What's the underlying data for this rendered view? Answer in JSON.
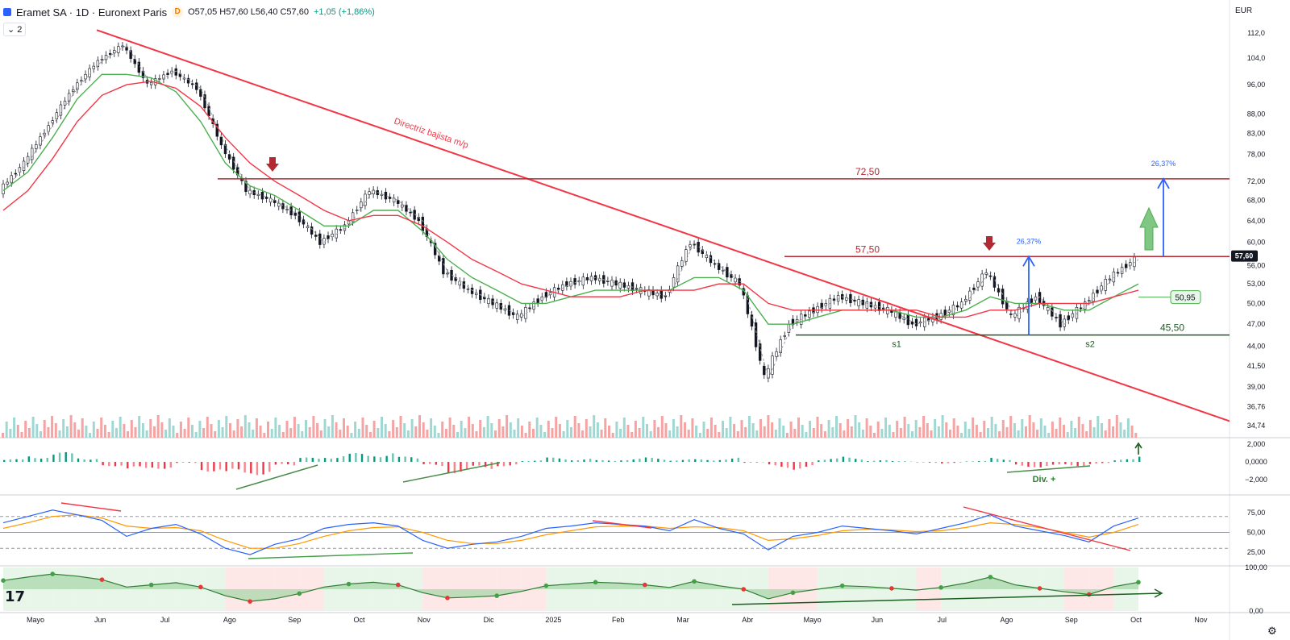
{
  "header": {
    "symbol": "Eramet SA · 1D · Euronext Paris",
    "interval_badge": "D",
    "ohlc": "O57,05 H57,60 L56,40 C57,60",
    "change": "+1,05 (+1,86%)",
    "layers_count": "2"
  },
  "currency": "EUR",
  "colors": {
    "up": "#26a69a",
    "down": "#ef5350",
    "sma_green": "#4caf50",
    "sma_red": "#f23645",
    "trendline": "#f23645",
    "resistance": "#b22833",
    "support": "#1b5e20",
    "arrow_blue": "#2962ff"
  },
  "chart_data": [
    {
      "type": "line",
      "panel": "price",
      "scale": "log",
      "x_ticks": [
        "Mayo",
        "Jun",
        "Jul",
        "Ago",
        "Sep",
        "Oct",
        "Nov",
        "Dic",
        "2025",
        "Feb",
        "Mar",
        "Abr",
        "Mayo",
        "Jun",
        "Jul",
        "Ago",
        "Sep",
        "Oct",
        "Nov"
      ],
      "y_ticks": [
        "112,0",
        "104,0",
        "96,00",
        "88,00",
        "83,00",
        "78,00",
        "72,00",
        "68,00",
        "64,00",
        "60,00",
        "56,00",
        "53,00",
        "50,00",
        "47,00",
        "44,00",
        "41,50",
        "39,00",
        "36,76",
        "34,74"
      ],
      "last_price": "57,60",
      "ma_label": "50,95",
      "series": [
        {
          "values": [
            70,
            76,
            85,
            95,
            103,
            108,
            96,
            100,
            95,
            80,
            70,
            68,
            65,
            60,
            63,
            70,
            68,
            64,
            55,
            52,
            50,
            48,
            51,
            53,
            54,
            53,
            52,
            51,
            60,
            56,
            53,
            40,
            47,
            49,
            51,
            50,
            49,
            47,
            48,
            50,
            55,
            48,
            51,
            47,
            50,
            54,
            57
          ]
        },
        {
          "values": [
            70,
            74,
            82,
            92,
            99,
            99,
            98,
            94,
            86,
            76,
            71,
            69,
            66,
            63,
            63,
            66,
            66,
            62,
            57,
            54,
            52,
            50,
            50,
            51,
            52,
            52,
            52,
            52,
            54,
            54,
            52,
            47,
            47,
            48,
            49,
            49,
            49,
            48,
            48,
            49,
            51,
            50,
            50,
            49,
            49,
            51,
            53
          ]
        },
        {
          "values": [
            66,
            70,
            77,
            86,
            93,
            96,
            97,
            95,
            90,
            82,
            76,
            72,
            69,
            66,
            64,
            65,
            65,
            63,
            60,
            57,
            55,
            53,
            52,
            51,
            51,
            51,
            52,
            52,
            52,
            53,
            53,
            50,
            49,
            49,
            49,
            49,
            49,
            49,
            48,
            48,
            49,
            49,
            50,
            50,
            50,
            51,
            52
          ]
        }
      ],
      "levels": [
        {
          "label": "72,50",
          "value": 72.5
        },
        {
          "label": "57,50",
          "value": 57.5
        },
        {
          "label": "45,50",
          "value": 45.5
        }
      ],
      "annotations": [
        {
          "text": "Directriz bajista m/p"
        },
        {
          "text": "26,37%"
        },
        {
          "text": "26,37%"
        },
        {
          "text": "s1"
        },
        {
          "text": "s2"
        }
      ]
    },
    {
      "type": "bar",
      "panel": "macd_histogram",
      "y_ticks": [
        "2,000",
        "0,0000",
        "−2,000"
      ],
      "annotation": "Div. +",
      "values": [
        0.3,
        0.9,
        1.1,
        0.6,
        -0.5,
        -1.2,
        -0.8,
        -0.2,
        -1.1,
        -1.9,
        -1.5,
        -0.6,
        0.5,
        0.9,
        1.0,
        1.3,
        0.6,
        -0.6,
        -1.3,
        -1.0,
        -0.5,
        0.2,
        0.5,
        0.4,
        0.2,
        0.4,
        0.5,
        0.3,
        0.3,
        0.5,
        -0.1,
        -0.7,
        -0.9,
        0.4,
        0.6,
        0.2,
        0.1,
        -0.1,
        -0.2,
        0.1,
        0.5,
        -0.6,
        -0.7,
        -0.5,
        -0.3,
        0.3,
        0.7
      ]
    },
    {
      "type": "line",
      "panel": "rsi",
      "y_ticks": [
        "75,00",
        "50,00",
        "25,00"
      ],
      "series": [
        {
          "values": [
            62,
            70,
            78,
            72,
            65,
            45,
            55,
            60,
            48,
            30,
            22,
            35,
            42,
            55,
            60,
            62,
            58,
            40,
            30,
            35,
            38,
            45,
            55,
            58,
            62,
            60,
            58,
            52,
            66,
            55,
            48,
            28,
            45,
            50,
            58,
            55,
            52,
            48,
            55,
            62,
            72,
            58,
            52,
            46,
            38,
            58,
            68
          ]
        },
        {
          "values": [
            55,
            62,
            70,
            72,
            68,
            58,
            55,
            56,
            52,
            40,
            30,
            30,
            36,
            45,
            52,
            56,
            57,
            50,
            40,
            36,
            36,
            40,
            47,
            52,
            57,
            58,
            58,
            55,
            57,
            56,
            52,
            40,
            42,
            46,
            52,
            54,
            53,
            51,
            52,
            56,
            62,
            60,
            56,
            50,
            44,
            50,
            60
          ]
        }
      ]
    },
    {
      "type": "area",
      "panel": "momentum",
      "y_ticks": [
        "100,00",
        "0,00"
      ],
      "series": [
        {
          "values": [
            70,
            78,
            85,
            80,
            72,
            55,
            60,
            65,
            55,
            35,
            22,
            28,
            40,
            55,
            62,
            66,
            60,
            42,
            30,
            32,
            35,
            45,
            58,
            62,
            66,
            64,
            60,
            54,
            68,
            58,
            50,
            28,
            42,
            50,
            58,
            56,
            52,
            48,
            54,
            64,
            78,
            60,
            52,
            44,
            38,
            56,
            66
          ]
        }
      ]
    }
  ]
}
